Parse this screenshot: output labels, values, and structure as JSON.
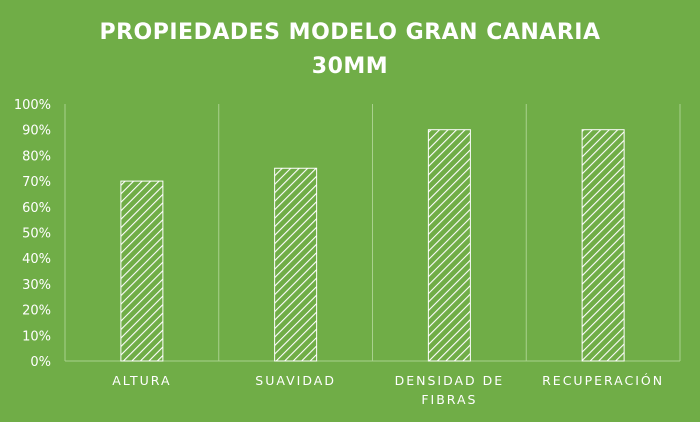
{
  "chart_data": {
    "type": "bar",
    "title_lines": [
      "PROPIEDADES MODELO GRAN CANARIA",
      "30MM"
    ],
    "categories": [
      [
        "ALTURA"
      ],
      [
        "SUAVIDAD"
      ],
      [
        "DENSIDAD DE",
        "FIBRAS"
      ],
      [
        "RECUPERACIÓN"
      ]
    ],
    "values": [
      70,
      75,
      90,
      90
    ],
    "ylim": [
      0,
      100
    ],
    "yticks": [
      "0%",
      "10%",
      "20%",
      "30%",
      "40%",
      "50%",
      "60%",
      "70%",
      "80%",
      "90%",
      "100%"
    ],
    "bar_fill": "hatched-diagonal",
    "colors": {
      "background": "#70AD47",
      "bar_stroke": "#ffffff",
      "hatch": "#ffffff",
      "grid": "#A9D18E",
      "text": "#ffffff"
    },
    "grid": "vertical-category-separators"
  }
}
